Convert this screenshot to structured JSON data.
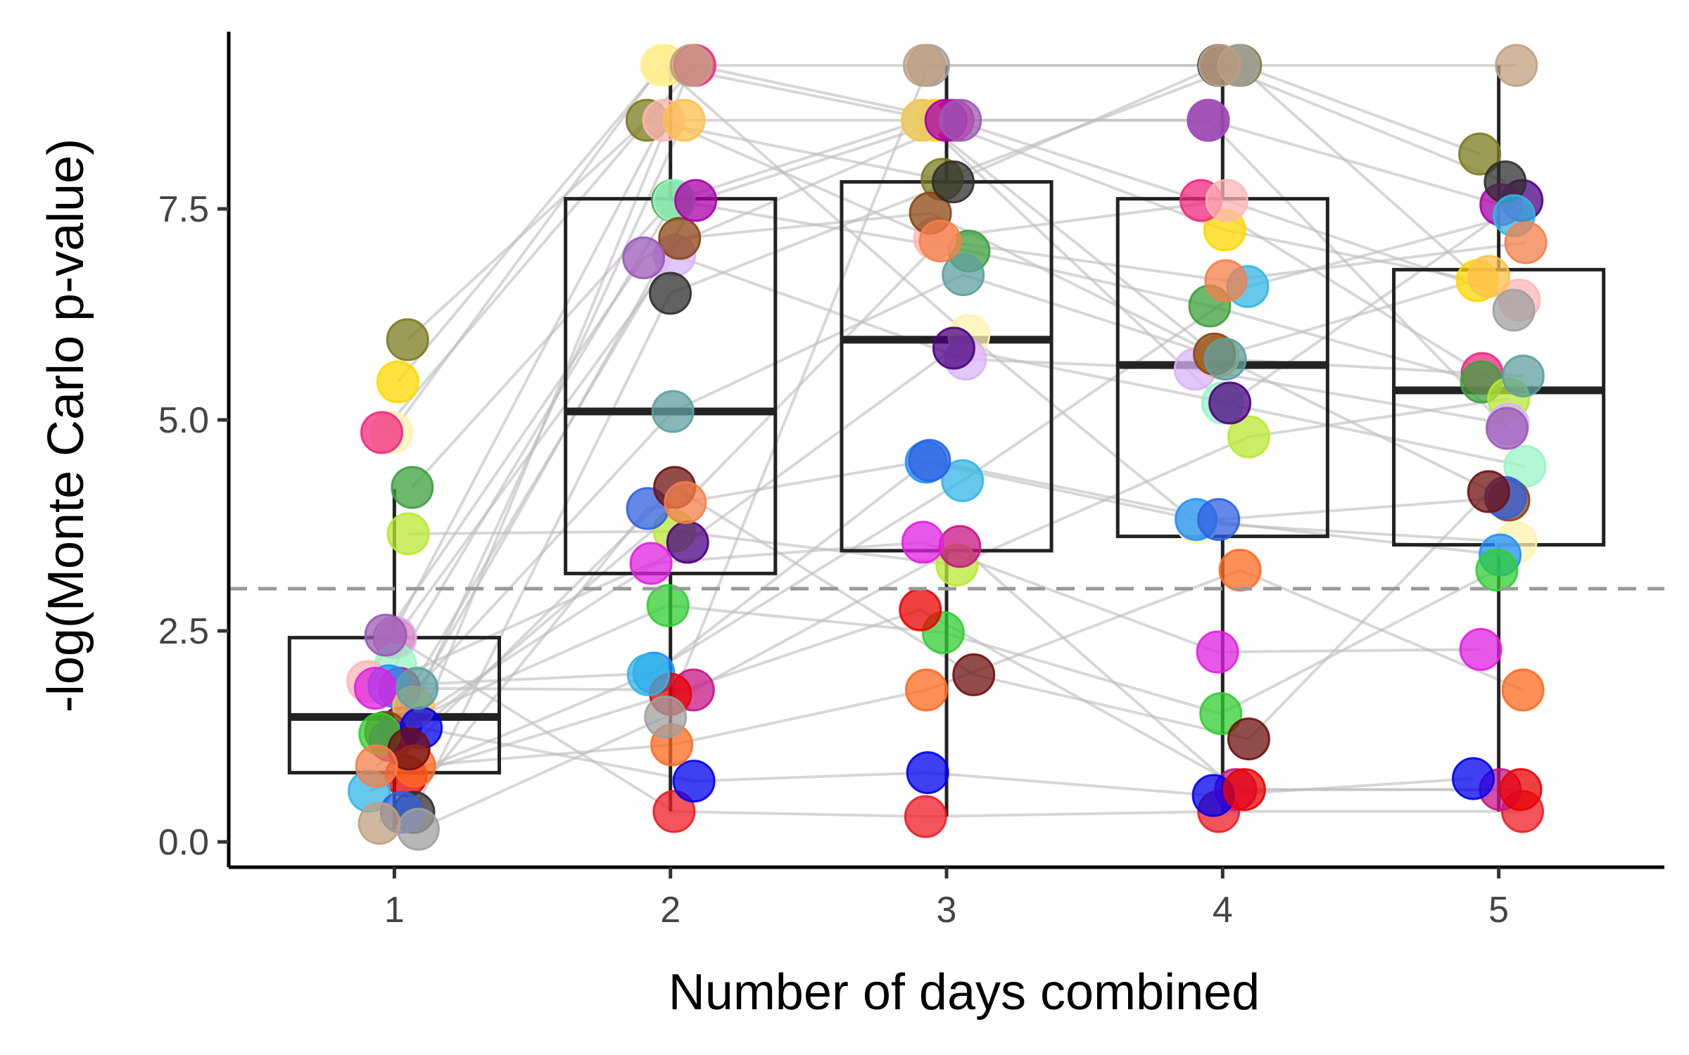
{
  "chart_data": {
    "type": "box-with-points",
    "xlabel": "Number of days combined",
    "ylabel": "-log(Monte Carlo p-value)",
    "categories": [
      "1",
      "2",
      "3",
      "4",
      "5"
    ],
    "y_ticks": [
      0.0,
      2.5,
      5.0,
      7.5
    ],
    "y_tick_labels": [
      "0.0",
      "2.5",
      "5.0",
      "7.5"
    ],
    "ylim": [
      -0.3,
      9.6
    ],
    "xlim": [
      0.4,
      5.6
    ],
    "threshold": 3.0,
    "grid": false,
    "legend": "none",
    "boxes": [
      {
        "x": 1,
        "q1": 0.82,
        "median": 1.48,
        "q3": 2.42,
        "whisker_low": 0.15,
        "whisker_high": 4.18
      },
      {
        "x": 2,
        "q1": 3.18,
        "median": 5.1,
        "q3": 7.62,
        "whisker_low": 0.36,
        "whisker_high": 9.2
      },
      {
        "x": 3,
        "q1": 3.45,
        "median": 5.95,
        "q3": 7.82,
        "whisker_low": 0.3,
        "whisker_high": 9.2
      },
      {
        "x": 4,
        "q1": 3.62,
        "median": 5.65,
        "q3": 7.62,
        "whisker_low": 0.36,
        "whisker_high": 9.2
      },
      {
        "x": 5,
        "q1": 3.52,
        "median": 5.35,
        "q3": 6.78,
        "whisker_low": 0.36,
        "whisker_high": 9.2
      }
    ],
    "series": [
      {
        "color": "#7B7B1F",
        "values": [
          5.95,
          8.55,
          7.85,
          9.2,
          8.15
        ]
      },
      {
        "color": "#FFD700",
        "values": [
          5.45,
          9.2,
          8.55,
          7.25,
          6.65
        ]
      },
      {
        "color": "#FFF3B0",
        "values": [
          4.85,
          9.2,
          6.0,
          3.78,
          3.55
        ]
      },
      {
        "color": "#F0287F",
        "values": [
          4.85,
          9.2,
          8.55,
          7.6,
          5.55
        ]
      },
      {
        "color": "#3DA03D",
        "values": [
          4.2,
          7.6,
          7.0,
          6.35,
          5.45
        ]
      },
      {
        "color": "#B8E832",
        "values": [
          3.65,
          3.68,
          3.28,
          4.8,
          5.25
        ]
      },
      {
        "color": "#ED1C24",
        "values": [
          2.42,
          0.36,
          0.3,
          0.36,
          0.36
        ]
      },
      {
        "color": "#D8B4F8",
        "values": [
          2.42,
          6.95,
          5.72,
          5.6,
          4.95
        ]
      },
      {
        "color": "#98F5C6",
        "values": [
          2.1,
          7.6,
          8.55,
          5.2,
          4.45
        ]
      },
      {
        "color": "#FFB6B6",
        "values": [
          1.9,
          8.55,
          7.15,
          7.6,
          6.42
        ]
      },
      {
        "color": "#C71585",
        "values": [
          1.82,
          1.8,
          3.5,
          0.62,
          0.62
        ]
      },
      {
        "color": "#4B0082",
        "values": [
          1.35,
          3.55,
          5.85,
          5.2,
          7.6
        ]
      },
      {
        "color": "#1E90FF",
        "values": [
          1.85,
          2.0,
          4.5,
          3.82,
          3.4
        ]
      },
      {
        "color": "#FFC04D",
        "values": [
          1.6,
          8.55,
          8.55,
          5.75,
          6.7
        ]
      },
      {
        "color": "#8B4513",
        "values": [
          1.3,
          7.15,
          7.45,
          5.78,
          4.05
        ]
      },
      {
        "color": "#AA00AA",
        "values": [
          1.2,
          7.6,
          8.55,
          8.55,
          7.55
        ]
      },
      {
        "color": "#32CD32",
        "values": [
          1.28,
          2.8,
          2.48,
          1.52,
          3.22
        ]
      },
      {
        "color": "#0000EE",
        "values": [
          1.35,
          0.72,
          0.82,
          0.55,
          0.75
        ]
      },
      {
        "color": "#E80000",
        "values": [
          0.78,
          1.75,
          2.75,
          0.62,
          0.62
        ]
      },
      {
        "color": "#FF6A20",
        "values": [
          0.9,
          1.15,
          1.8,
          3.22,
          1.8
        ]
      },
      {
        "color": "#2D2D2D",
        "values": [
          0.35,
          6.5,
          7.82,
          9.2,
          7.82
        ]
      },
      {
        "color": "#33B5E5",
        "values": [
          0.6,
          1.98,
          4.28,
          6.58,
          7.42
        ]
      },
      {
        "color": "#3060E0",
        "values": [
          0.35,
          3.95,
          4.52,
          3.82,
          4.08
        ]
      },
      {
        "color": "#A0A0A0",
        "values": [
          0.15,
          1.48,
          9.2,
          9.2,
          6.3
        ]
      },
      {
        "color": "#C0A080",
        "values": [
          0.22,
          9.2,
          9.2,
          9.2,
          9.2
        ]
      },
      {
        "color": "#6F1010",
        "values": [
          1.1,
          4.2,
          1.98,
          1.22,
          4.15
        ]
      },
      {
        "color": "#E020E0",
        "values": [
          1.82,
          3.3,
          3.55,
          2.25,
          2.28
        ]
      },
      {
        "color": "#5F9F9F",
        "values": [
          1.82,
          5.1,
          6.72,
          5.72,
          5.52
        ]
      },
      {
        "color": "#F4804A",
        "values": [
          0.9,
          4.02,
          7.12,
          6.65,
          7.1
        ]
      },
      {
        "color": "#9B59B6",
        "values": [
          2.45,
          6.92,
          8.55,
          8.55,
          4.9
        ]
      }
    ]
  }
}
